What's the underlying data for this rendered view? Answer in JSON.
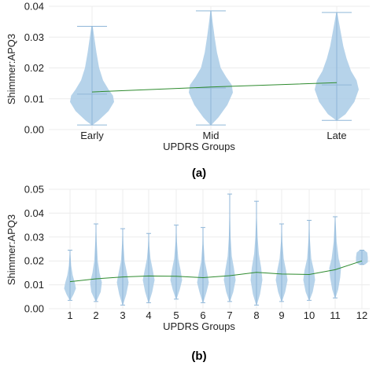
{
  "chart_data": [
    {
      "type": "violin",
      "caption": "(a)",
      "xlabel": "UPDRS Groups",
      "ylabel": "Shimmer:APQ3",
      "ylim": [
        0,
        0.04
      ],
      "yticks": [
        "0.00",
        "0.01",
        "0.02",
        "0.03",
        "0.04"
      ],
      "grid": true,
      "categories": [
        "Early",
        "Mid",
        "Late"
      ],
      "violins": [
        {
          "min": 0.0015,
          "max": 0.0335,
          "median": 0.0115,
          "widths": [
            [
              0.0015,
              0.02
            ],
            [
              0.003,
              0.3
            ],
            [
              0.006,
              0.75
            ],
            [
              0.009,
              1.0
            ],
            [
              0.011,
              0.95
            ],
            [
              0.013,
              0.75
            ],
            [
              0.016,
              0.5
            ],
            [
              0.02,
              0.32
            ],
            [
              0.025,
              0.2
            ],
            [
              0.03,
              0.1
            ],
            [
              0.0335,
              0.03
            ]
          ]
        },
        {
          "min": 0.0015,
          "max": 0.0385,
          "median": 0.0135,
          "widths": [
            [
              0.0015,
              0.02
            ],
            [
              0.004,
              0.35
            ],
            [
              0.008,
              0.75
            ],
            [
              0.012,
              1.0
            ],
            [
              0.0145,
              0.95
            ],
            [
              0.017,
              0.7
            ],
            [
              0.02,
              0.45
            ],
            [
              0.025,
              0.28
            ],
            [
              0.03,
              0.17
            ],
            [
              0.035,
              0.08
            ],
            [
              0.0385,
              0.02
            ]
          ]
        },
        {
          "min": 0.003,
          "max": 0.038,
          "median": 0.0145,
          "widths": [
            [
              0.003,
              0.02
            ],
            [
              0.005,
              0.4
            ],
            [
              0.009,
              0.8
            ],
            [
              0.013,
              1.0
            ],
            [
              0.016,
              0.9
            ],
            [
              0.019,
              0.65
            ],
            [
              0.023,
              0.45
            ],
            [
              0.027,
              0.3
            ],
            [
              0.032,
              0.17
            ],
            [
              0.036,
              0.07
            ],
            [
              0.038,
              0.02
            ]
          ]
        }
      ],
      "trend": [
        0.0122,
        0.0138,
        0.0152
      ]
    },
    {
      "type": "violin",
      "caption": "(b)",
      "xlabel": "UPDRS Groups",
      "ylabel": "Shimmer:APQ3",
      "ylim": [
        0,
        0.05
      ],
      "yticks": [
        "0.00",
        "0.01",
        "0.02",
        "0.03",
        "0.04",
        "0.05"
      ],
      "grid": true,
      "categories": [
        "1",
        "2",
        "3",
        "4",
        "5",
        "6",
        "7",
        "8",
        "9",
        "10",
        "11",
        "12"
      ],
      "violins": [
        {
          "min": 0.0035,
          "max": 0.0245,
          "widths": [
            [
              0.0035,
              0.05
            ],
            [
              0.006,
              0.6
            ],
            [
              0.0085,
              1.0
            ],
            [
              0.011,
              0.8
            ],
            [
              0.014,
              0.45
            ],
            [
              0.018,
              0.2
            ],
            [
              0.0245,
              0.03
            ]
          ]
        },
        {
          "min": 0.003,
          "max": 0.0355,
          "widths": [
            [
              0.003,
              0.05
            ],
            [
              0.007,
              0.8
            ],
            [
              0.011,
              1.0
            ],
            [
              0.015,
              0.6
            ],
            [
              0.02,
              0.3
            ],
            [
              0.028,
              0.12
            ],
            [
              0.0355,
              0.03
            ]
          ]
        },
        {
          "min": 0.0015,
          "max": 0.0335,
          "widths": [
            [
              0.0015,
              0.05
            ],
            [
              0.006,
              0.6
            ],
            [
              0.011,
              1.0
            ],
            [
              0.015,
              0.7
            ],
            [
              0.02,
              0.3
            ],
            [
              0.027,
              0.12
            ],
            [
              0.0335,
              0.03
            ]
          ]
        },
        {
          "min": 0.0025,
          "max": 0.0315,
          "widths": [
            [
              0.0025,
              0.05
            ],
            [
              0.007,
              0.6
            ],
            [
              0.012,
              1.0
            ],
            [
              0.016,
              0.7
            ],
            [
              0.021,
              0.3
            ],
            [
              0.026,
              0.12
            ],
            [
              0.0315,
              0.03
            ]
          ]
        },
        {
          "min": 0.004,
          "max": 0.035,
          "widths": [
            [
              0.004,
              0.05
            ],
            [
              0.008,
              0.6
            ],
            [
              0.012,
              1.0
            ],
            [
              0.016,
              0.75
            ],
            [
              0.021,
              0.35
            ],
            [
              0.028,
              0.12
            ],
            [
              0.035,
              0.03
            ]
          ]
        },
        {
          "min": 0.0025,
          "max": 0.034,
          "widths": [
            [
              0.0025,
              0.05
            ],
            [
              0.007,
              0.6
            ],
            [
              0.011,
              1.0
            ],
            [
              0.015,
              0.7
            ],
            [
              0.02,
              0.3
            ],
            [
              0.027,
              0.1
            ],
            [
              0.034,
              0.03
            ]
          ]
        },
        {
          "min": 0.003,
          "max": 0.048,
          "widths": [
            [
              0.003,
              0.05
            ],
            [
              0.007,
              0.6
            ],
            [
              0.012,
              1.0
            ],
            [
              0.017,
              0.7
            ],
            [
              0.022,
              0.35
            ],
            [
              0.03,
              0.15
            ],
            [
              0.04,
              0.06
            ],
            [
              0.048,
              0.02
            ]
          ]
        },
        {
          "min": 0.0015,
          "max": 0.045,
          "widths": [
            [
              0.0015,
              0.05
            ],
            [
              0.006,
              0.6
            ],
            [
              0.012,
              1.0
            ],
            [
              0.017,
              0.8
            ],
            [
              0.023,
              0.4
            ],
            [
              0.03,
              0.18
            ],
            [
              0.038,
              0.07
            ],
            [
              0.045,
              0.02
            ]
          ]
        },
        {
          "min": 0.003,
          "max": 0.0355,
          "widths": [
            [
              0.003,
              0.05
            ],
            [
              0.007,
              0.6
            ],
            [
              0.012,
              1.0
            ],
            [
              0.016,
              0.75
            ],
            [
              0.021,
              0.35
            ],
            [
              0.028,
              0.12
            ],
            [
              0.0355,
              0.03
            ]
          ]
        },
        {
          "min": 0.0035,
          "max": 0.037,
          "widths": [
            [
              0.0035,
              0.05
            ],
            [
              0.007,
              0.6
            ],
            [
              0.012,
              1.0
            ],
            [
              0.016,
              0.8
            ],
            [
              0.021,
              0.35
            ],
            [
              0.029,
              0.12
            ],
            [
              0.037,
              0.03
            ]
          ]
        },
        {
          "min": 0.0045,
          "max": 0.0385,
          "widths": [
            [
              0.0045,
              0.05
            ],
            [
              0.008,
              0.5
            ],
            [
              0.013,
              0.85
            ],
            [
              0.017,
              1.0
            ],
            [
              0.021,
              0.6
            ],
            [
              0.028,
              0.25
            ],
            [
              0.0385,
              0.04
            ]
          ]
        },
        {
          "min": 0.0185,
          "max": 0.0245,
          "widths": [
            [
              0.0185,
              0.55
            ],
            [
              0.0195,
              1.0
            ],
            [
              0.0215,
              1.0
            ],
            [
              0.0235,
              0.9
            ],
            [
              0.0245,
              0.4
            ]
          ]
        }
      ],
      "trend": [
        0.0113,
        0.0125,
        0.0133,
        0.0137,
        0.0136,
        0.013,
        0.0138,
        0.0152,
        0.0145,
        0.0143,
        0.0163,
        0.02
      ]
    }
  ],
  "colors": {
    "violin": "#a9cbe6",
    "trend": "#2e8b2e",
    "grid": "#ececec"
  }
}
